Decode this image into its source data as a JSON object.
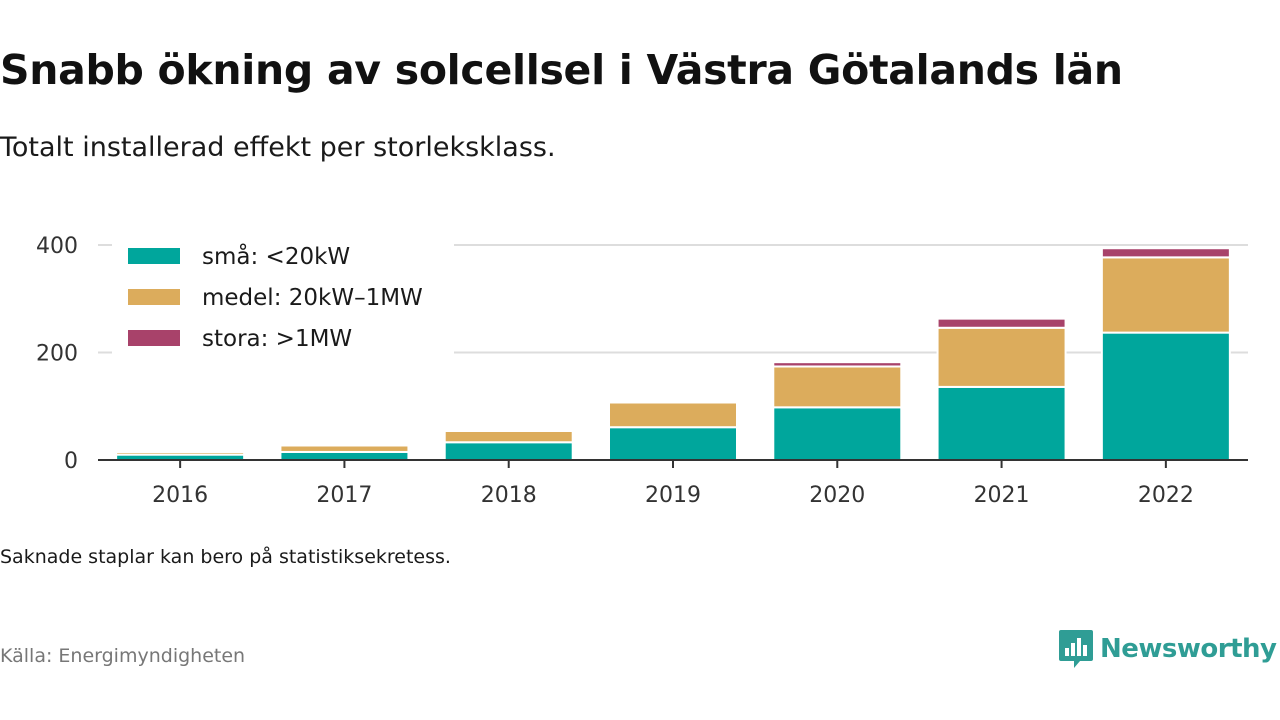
{
  "title": "Snabb ökning av solcellsel i Västra Götalands län",
  "subtitle": "Totalt installerad effekt per storleksklass.",
  "note": "Saknade staplar kan bero på statistiksekretess.",
  "source": "Källa: Energimyndigheten",
  "brand": {
    "name": "Newsworthy",
    "color": "#2f9d95"
  },
  "chart_data": {
    "type": "bar",
    "stacked": true,
    "categories": [
      "2016",
      "2017",
      "2018",
      "2019",
      "2020",
      "2021",
      "2022"
    ],
    "series": [
      {
        "name": "små: <20kW",
        "color": "#00a69c",
        "values": [
          10,
          15,
          33,
          61,
          98,
          136,
          237
        ]
      },
      {
        "name": "medel: 20kW–1MW",
        "color": "#dcac5c",
        "values": [
          5,
          12,
          21,
          46,
          76,
          110,
          140
        ]
      },
      {
        "name": "stora: >1MW",
        "color": "#a8426a",
        "values": [
          1,
          1,
          1,
          1,
          8,
          17,
          17
        ]
      }
    ],
    "yticks": [
      0,
      200,
      400
    ],
    "ylim": [
      0,
      400
    ],
    "grid": true,
    "legend_position": "top-left"
  }
}
